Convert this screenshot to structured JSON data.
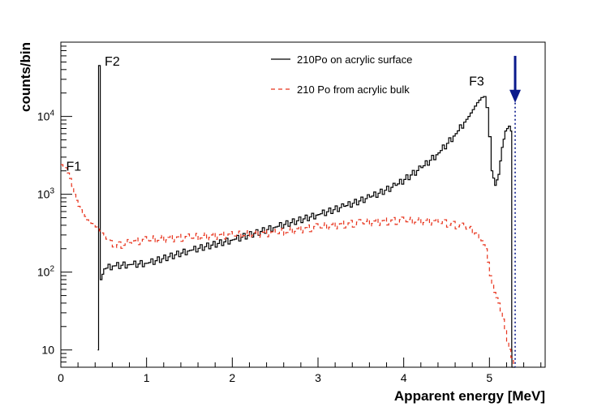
{
  "chart_data": {
    "type": "line",
    "style": "step-histogram",
    "title": "",
    "xlabel": "Apparent energy [MeV]",
    "ylabel": "counts/bin",
    "xlim": [
      0,
      5.65
    ],
    "ylim": [
      6,
      90000
    ],
    "yscale": "log",
    "x_ticks": [
      0,
      1,
      2,
      3,
      4,
      5
    ],
    "x_tick_labels": [
      "0",
      "1",
      "2",
      "3",
      "4",
      "5"
    ],
    "y_ticks": [
      10,
      100,
      1000,
      10000
    ],
    "y_tick_labels": [
      {
        "base": "10",
        "exp": ""
      },
      {
        "base": "10",
        "exp": "2"
      },
      {
        "base": "10",
        "exp": "3"
      },
      {
        "base": "10",
        "exp": "4"
      }
    ],
    "legend": [
      {
        "label": "210Po on acrylic surface",
        "color": "#000000",
        "style": "solid"
      },
      {
        "label": "210 Po from acrylic bulk",
        "color": "#e8331c",
        "style": "dashed"
      }
    ],
    "annotations": [
      {
        "text": "F1",
        "x": 0.15,
        "y": 2000
      },
      {
        "text": "F2",
        "x": 0.6,
        "y": 45000
      },
      {
        "text": "F3",
        "x": 4.85,
        "y": 25000
      }
    ],
    "marker": {
      "x": 5.3,
      "y_top": 60000,
      "y_head": 15000,
      "color": "#0a1a8c"
    },
    "series": [
      {
        "name": "210Po on acrylic surface",
        "color": "#000000",
        "x": [
          0.43,
          0.44,
          0.45,
          0.46,
          0.5,
          0.6,
          0.8,
          1.0,
          1.5,
          2.0,
          2.5,
          3.0,
          3.3,
          3.6,
          3.9,
          4.2,
          4.4,
          4.6,
          4.75,
          4.85,
          4.9,
          4.93,
          4.96,
          4.99,
          5.02,
          5.06,
          5.1,
          5.14,
          5.18,
          5.22,
          5.245,
          5.26,
          5.262,
          5.3
        ],
        "values": [
          10,
          45000,
          45000,
          80,
          110,
          120,
          125,
          130,
          190,
          260,
          380,
          550,
          700,
          920,
          1300,
          2200,
          3400,
          6000,
          10000,
          15000,
          17500,
          18000,
          13000,
          5500,
          2000,
          1300,
          1800,
          4000,
          6500,
          7500,
          6500,
          10,
          6,
          6
        ]
      },
      {
        "name": "210 Po from acrylic bulk",
        "color": "#e8331c",
        "x": [
          0,
          0.05,
          0.1,
          0.15,
          0.2,
          0.3,
          0.4,
          0.5,
          0.6,
          0.8,
          1.0,
          1.5,
          2.0,
          2.5,
          3.0,
          3.5,
          4.0,
          4.4,
          4.7,
          4.85,
          4.95,
          5.0,
          5.05,
          5.1,
          5.15,
          5.2,
          5.25,
          5.28
        ],
        "values": [
          2400,
          2200,
          1600,
          1000,
          700,
          470,
          380,
          300,
          210,
          240,
          260,
          280,
          300,
          320,
          380,
          430,
          460,
          440,
          380,
          320,
          200,
          90,
          55,
          40,
          25,
          13,
          8,
          6
        ]
      }
    ]
  }
}
